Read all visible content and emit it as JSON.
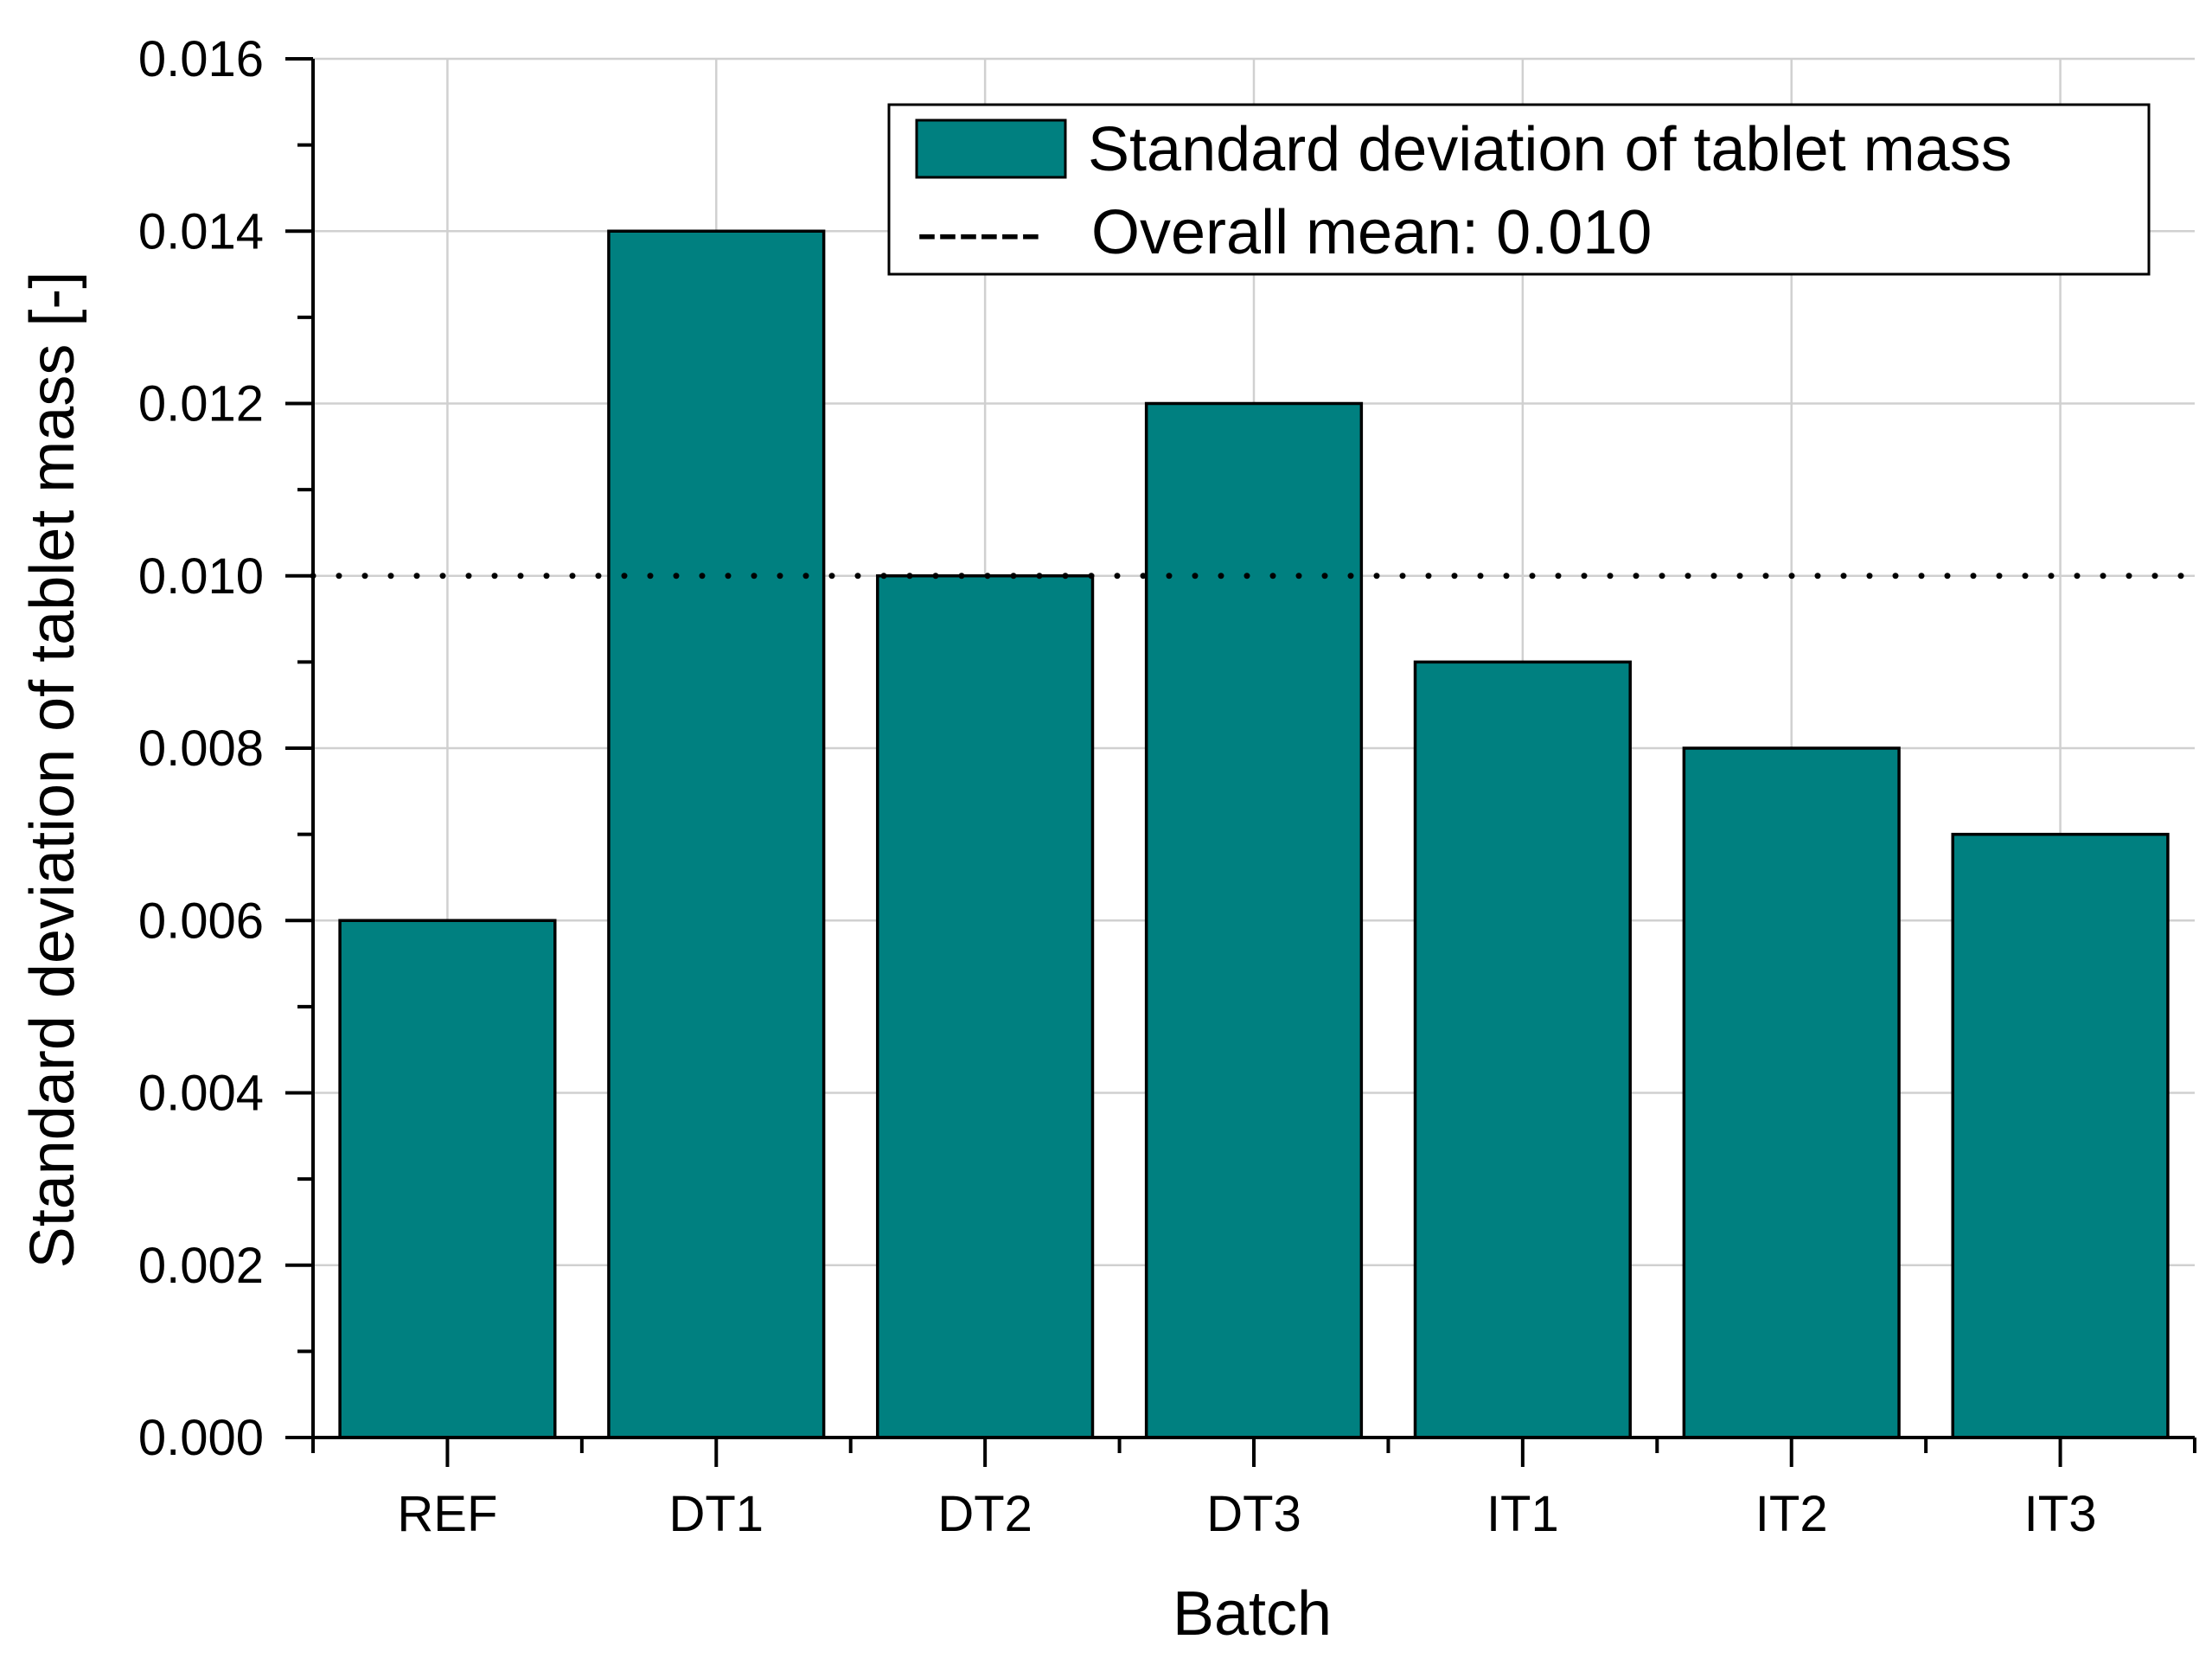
{
  "chart_data": {
    "type": "bar",
    "title": "",
    "xlabel": "Batch",
    "ylabel": "Standard deviation of tablet mass [-]",
    "categories": [
      "REF",
      "DT1",
      "DT2",
      "DT3",
      "IT1",
      "IT2",
      "IT3"
    ],
    "series": [
      {
        "name": "Standard deviation of tablet mass",
        "values": [
          0.006,
          0.014,
          0.01,
          0.012,
          0.009,
          0.008,
          0.007
        ],
        "color": "#008080"
      }
    ],
    "reference_line": {
      "label": "Overall mean: 0.010",
      "value": 0.01,
      "style": "dotted"
    },
    "ylim": [
      0,
      0.016
    ],
    "y_ticks": [
      "0.000",
      "0.002",
      "0.004",
      "0.006",
      "0.008",
      "0.010",
      "0.012",
      "0.014",
      "0.016"
    ],
    "y_tick_values": [
      0,
      0.002,
      0.004,
      0.006,
      0.008,
      0.01,
      0.012,
      0.014,
      0.016
    ],
    "grid": true,
    "legend_position": "top-right",
    "legend_line_glyph": "------"
  }
}
